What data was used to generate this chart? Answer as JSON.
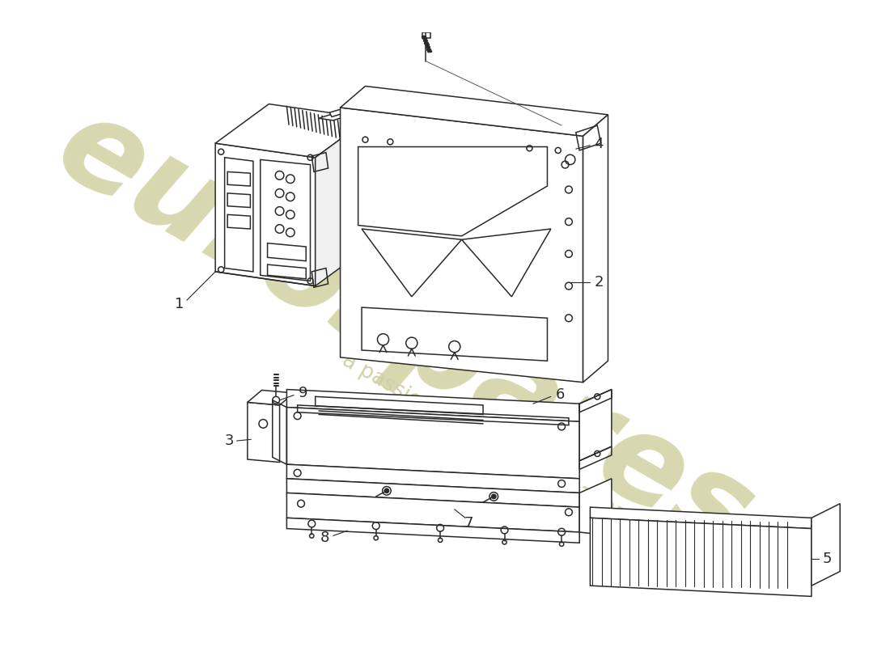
{
  "background_color": "#ffffff",
  "line_color": "#2a2a2a",
  "watermark_color1": "#d8d8b0",
  "watermark_color2": "#d0d0a8",
  "lw": 1.1
}
